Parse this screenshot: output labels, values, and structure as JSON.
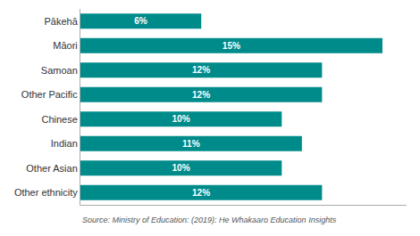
{
  "chart_data": {
    "type": "bar",
    "orientation": "horizontal",
    "categories": [
      "Pākehā",
      "Māori",
      "Samoan",
      "Other Pacific",
      "Chinese",
      "Indian",
      "Other Asian",
      "Other ethnicity"
    ],
    "values": [
      6,
      15,
      12,
      12,
      10,
      11,
      10,
      12
    ],
    "value_labels": [
      "6%",
      "15%",
      "12%",
      "12%",
      "10%",
      "11%",
      "10%",
      "12%"
    ],
    "data_labels": true,
    "color": "#008B8B",
    "xlim": [
      0,
      16.2
    ],
    "tick_labels": "y",
    "grid": false,
    "annotations": [
      "Source: Ministry of Education: (2019): He Whakaaro Education Insights"
    ]
  }
}
